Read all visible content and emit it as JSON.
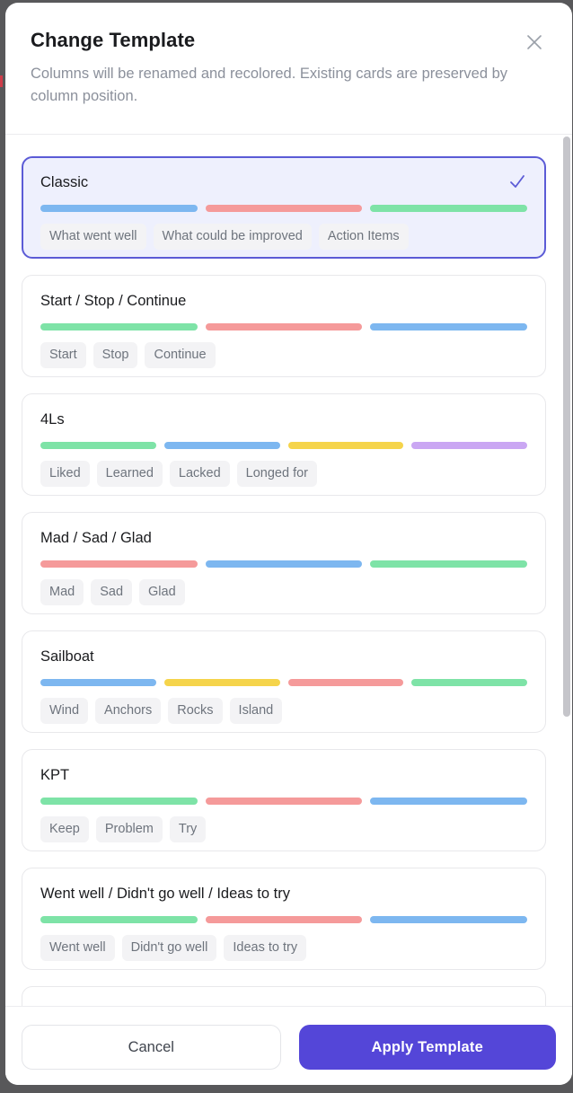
{
  "modal": {
    "title": "Change Template",
    "subtitle": "Columns will be renamed and recolored. Existing cards are preserved by column position."
  },
  "colors": {
    "backdrop": "#58585a",
    "accent": "#5446d8",
    "selected_border": "#5b5bd6",
    "selected_bg": "#eef0fd",
    "bar_blue": "#7db7f0",
    "bar_red": "#f59a9a",
    "bar_green": "#7ee3a7",
    "bar_yellow": "#f5d44b",
    "bar_purple": "#caa7f3"
  },
  "templates": [
    {
      "name": "Classic",
      "selected": true,
      "partial": false,
      "bar_colors": [
        "blue",
        "red",
        "green"
      ],
      "columns": [
        "What went well",
        "What could be improved",
        "Action Items"
      ]
    },
    {
      "name": "Start / Stop / Continue",
      "selected": false,
      "partial": false,
      "bar_colors": [
        "green",
        "red",
        "blue"
      ],
      "columns": [
        "Start",
        "Stop",
        "Continue"
      ]
    },
    {
      "name": "4Ls",
      "selected": false,
      "partial": false,
      "bar_colors": [
        "green",
        "blue",
        "yellow",
        "purple"
      ],
      "columns": [
        "Liked",
        "Learned",
        "Lacked",
        "Longed for"
      ]
    },
    {
      "name": "Mad / Sad / Glad",
      "selected": false,
      "partial": false,
      "bar_colors": [
        "red",
        "blue",
        "green"
      ],
      "columns": [
        "Mad",
        "Sad",
        "Glad"
      ]
    },
    {
      "name": "Sailboat",
      "selected": false,
      "partial": false,
      "bar_colors": [
        "blue",
        "yellow",
        "red",
        "green"
      ],
      "columns": [
        "Wind",
        "Anchors",
        "Rocks",
        "Island"
      ]
    },
    {
      "name": "KPT",
      "selected": false,
      "partial": false,
      "bar_colors": [
        "green",
        "red",
        "blue"
      ],
      "columns": [
        "Keep",
        "Problem",
        "Try"
      ]
    },
    {
      "name": "Went well / Didn't go well / Ideas to try",
      "selected": false,
      "partial": false,
      "bar_colors": [
        "green",
        "red",
        "blue"
      ],
      "columns": [
        "Went well",
        "Didn't go well",
        "Ideas to try"
      ]
    },
    {
      "name": "",
      "selected": false,
      "partial": true,
      "bar_colors": [],
      "columns": []
    }
  ],
  "footer": {
    "cancel_label": "Cancel",
    "apply_label": "Apply Template"
  }
}
